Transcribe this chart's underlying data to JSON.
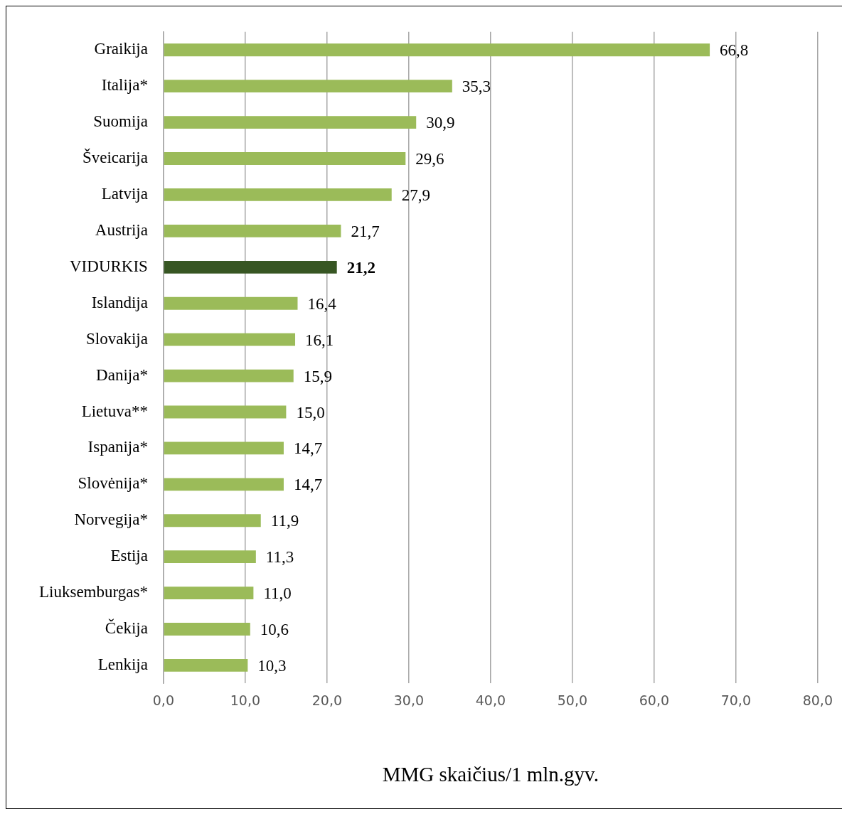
{
  "chart_data": {
    "type": "bar",
    "orientation": "horizontal",
    "xlabel": "MMG skaičius/1 mln.gyv.",
    "categories": [
      "Graikija",
      "Italija*",
      "Suomija",
      "Šveicarija",
      "Latvija",
      "Austrija",
      "VIDURKIS",
      "Islandija",
      "Slovakija",
      "Danija*",
      "Lietuva**",
      "Ispanija*",
      "Slovėnija*",
      "Norvegija*",
      "Estija",
      "Liuksemburgas*",
      "Čekija",
      "Lenkija"
    ],
    "values": [
      66.8,
      35.3,
      30.9,
      29.6,
      27.9,
      21.7,
      21.2,
      16.4,
      16.1,
      15.9,
      15.0,
      14.7,
      14.7,
      11.9,
      11.3,
      11.0,
      10.6,
      10.3
    ],
    "value_labels": [
      "66,8",
      "35,3",
      "30,9",
      "29,6",
      "27,9",
      "21,7",
      "21,2",
      "16,4",
      "16,1",
      "15,9",
      "15,0",
      "14,7",
      "14,7",
      "11,9",
      "11,3",
      "11,0",
      "10,6",
      "10,3"
    ],
    "colors": [
      "#9bbb59",
      "#9bbb59",
      "#9bbb59",
      "#9bbb59",
      "#9bbb59",
      "#9bbb59",
      "#375623",
      "#9bbb59",
      "#9bbb59",
      "#9bbb59",
      "#9bbb59",
      "#9bbb59",
      "#9bbb59",
      "#9bbb59",
      "#9bbb59",
      "#9bbb59",
      "#9bbb59",
      "#9bbb59"
    ],
    "xlim": [
      0,
      80
    ],
    "xticks": [
      {
        "value": 0,
        "label": "0,0"
      },
      {
        "value": 10,
        "label": "10,0"
      },
      {
        "value": 20,
        "label": "20,0"
      },
      {
        "value": 30,
        "label": "30,0"
      },
      {
        "value": 40,
        "label": "40,0"
      },
      {
        "value": 50,
        "label": "50,0"
      },
      {
        "value": 60,
        "label": "60,0"
      },
      {
        "value": 70,
        "label": "70,0"
      },
      {
        "value": 80,
        "label": "80,0"
      }
    ],
    "grid": "x",
    "legend": false
  }
}
